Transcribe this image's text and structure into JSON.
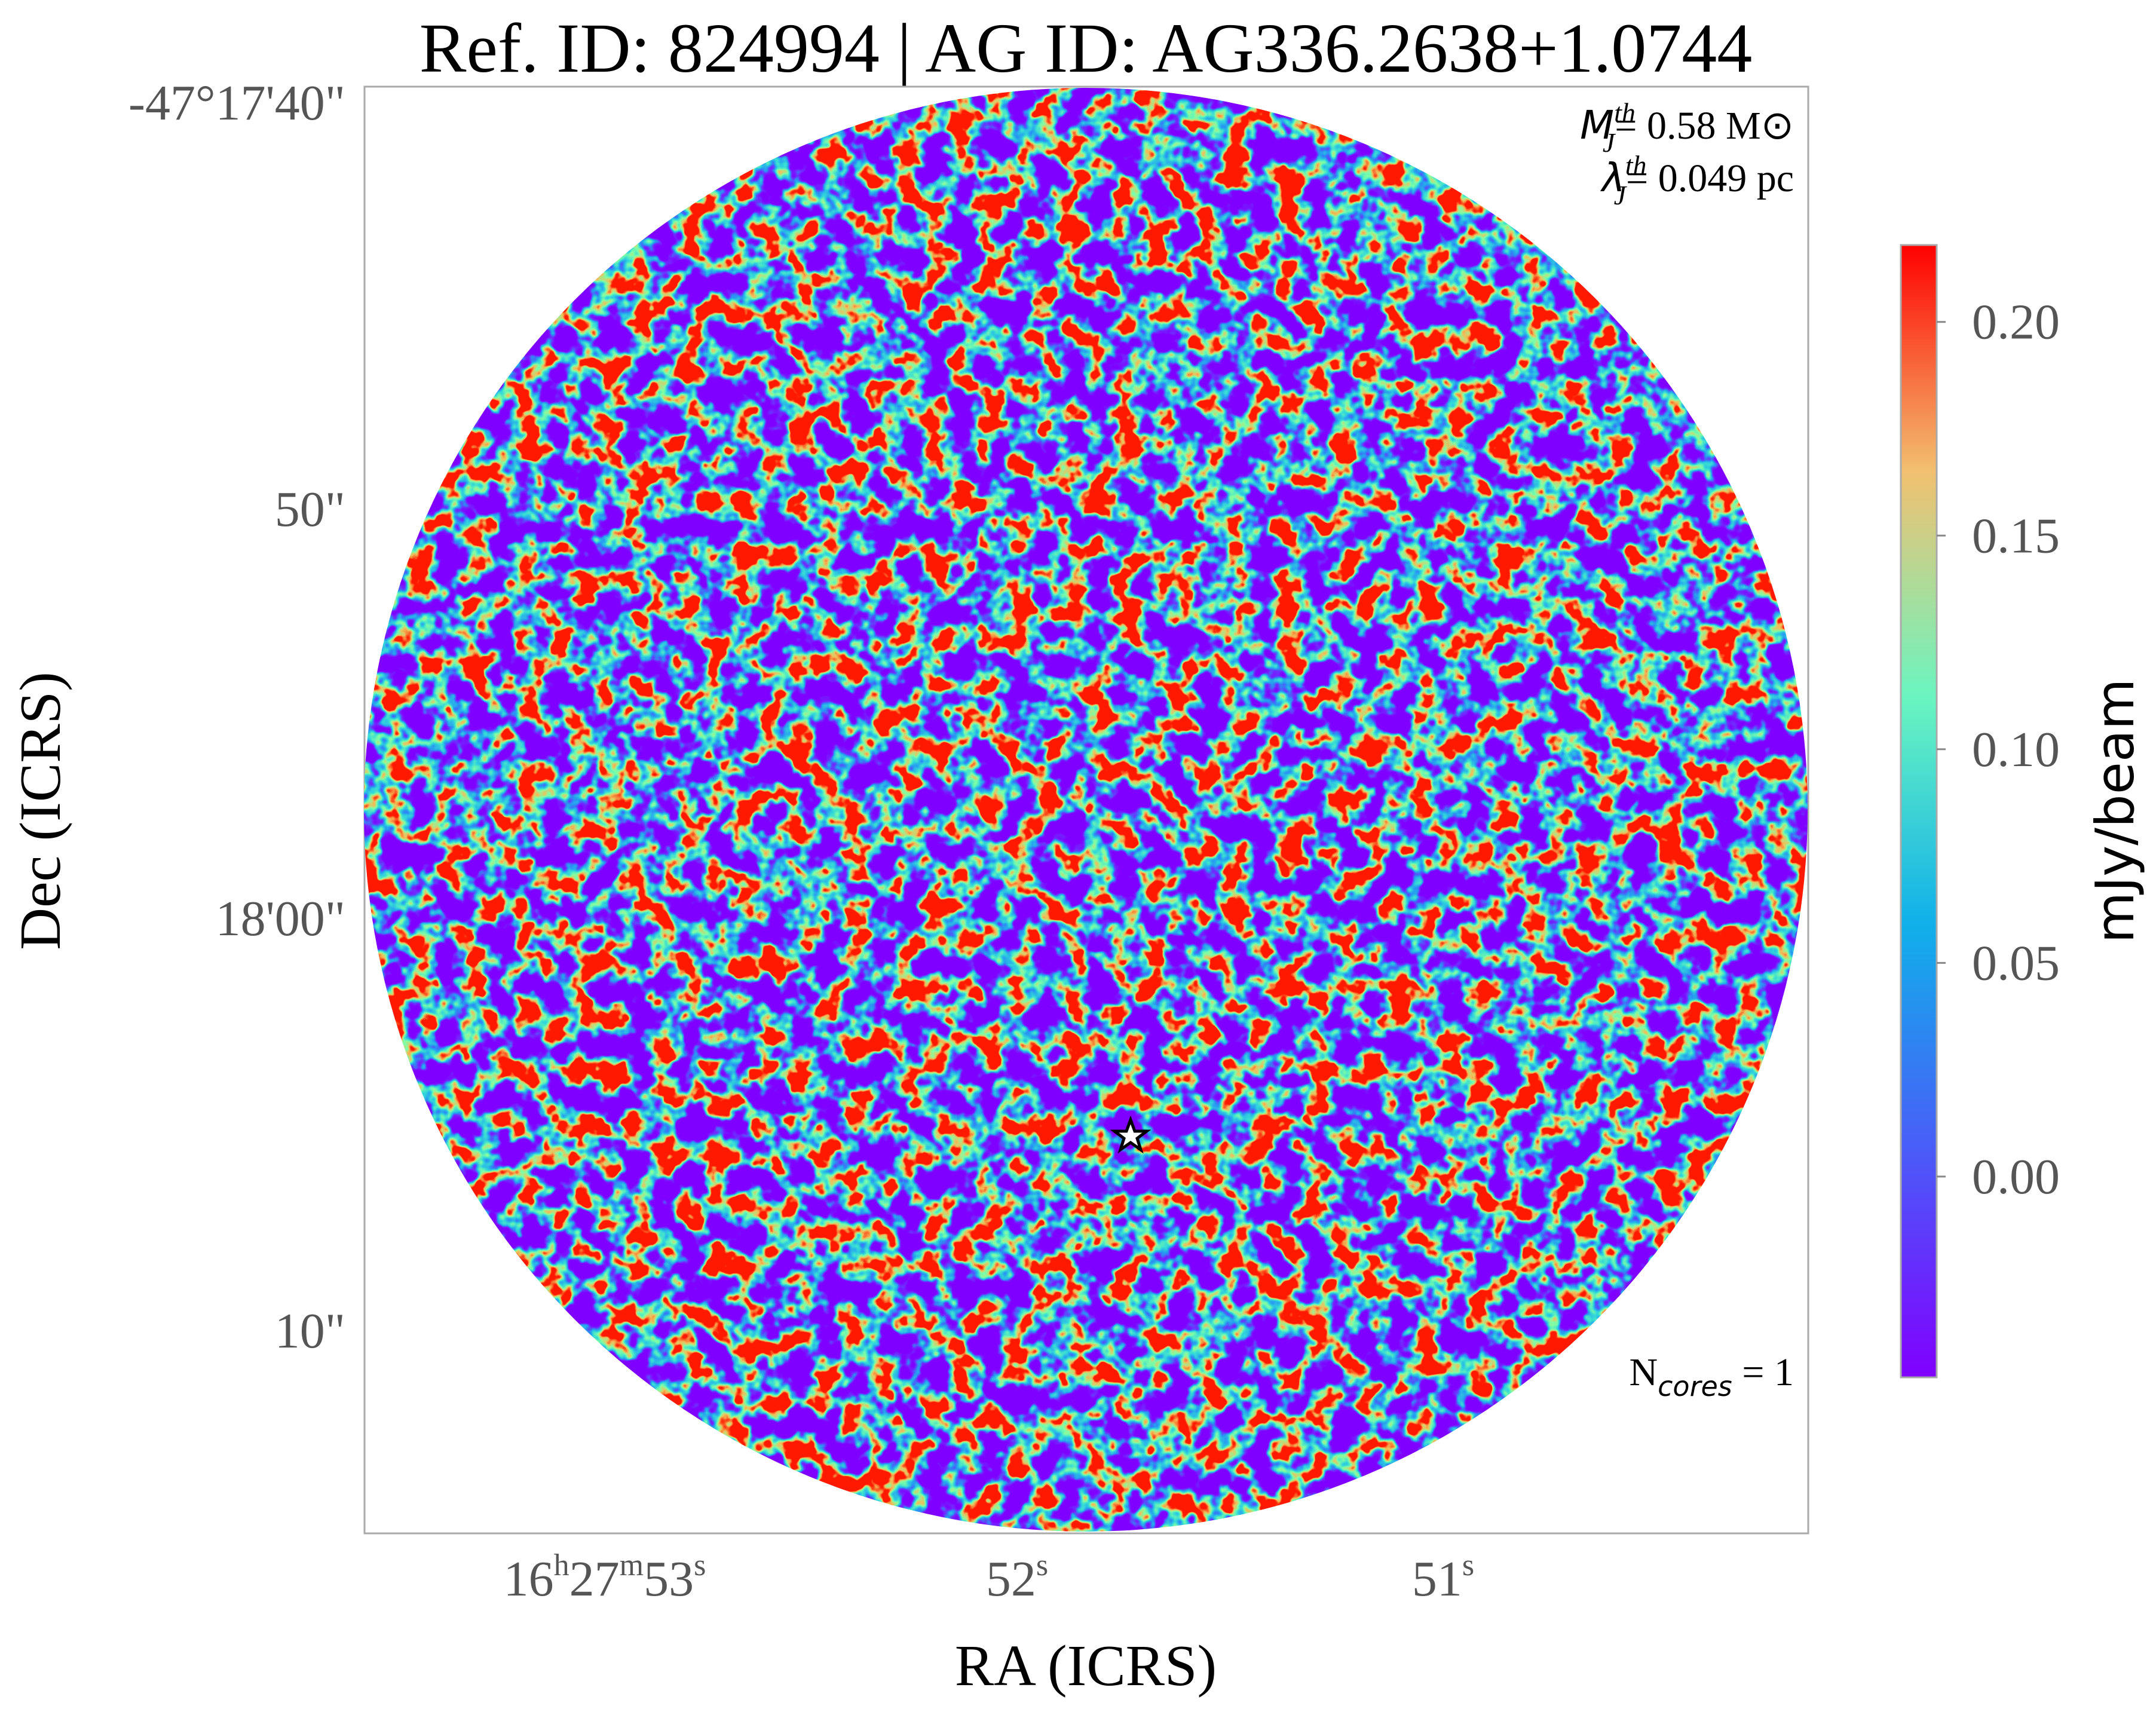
{
  "chart_data": {
    "type": "image",
    "title": "Ref. ID: 824994 | AG ID: AG336.2638+1.0744",
    "xlabel": "RA (ICRS)",
    "ylabel": "Dec (ICRS)",
    "xtick_labels": [
      [
        "16",
        "h",
        "27",
        "m",
        "53",
        "s"
      ],
      [
        "52",
        "s"
      ],
      [
        "51",
        "s"
      ]
    ],
    "ytick_labels": [
      "-47°17'40\"",
      "50\"",
      "18'00\"",
      "10\""
    ],
    "annotations": [
      {
        "symbol": "M",
        "sup": "th",
        "sub": "J",
        "text": "= 0.58 M⊙"
      },
      {
        "symbol": "λ",
        "sup": "th",
        "sub": "J",
        "text": "= 0.049 pc"
      },
      {
        "symbol": "N",
        "sub": "cores",
        "text": " = 1"
      }
    ],
    "colorbar": {
      "label": "mJy/beam",
      "clim": [
        -0.047,
        0.218
      ],
      "ticks": [
        {
          "value": 0,
          "label": "0.00"
        },
        {
          "value": 0.05,
          "label": "0.05"
        },
        {
          "value": 0.1,
          "label": "0.10"
        },
        {
          "value": 0.15,
          "label": "0.15"
        },
        {
          "value": 0.2,
          "label": "0.20"
        }
      ],
      "colormap": "rainbow"
    }
  }
}
